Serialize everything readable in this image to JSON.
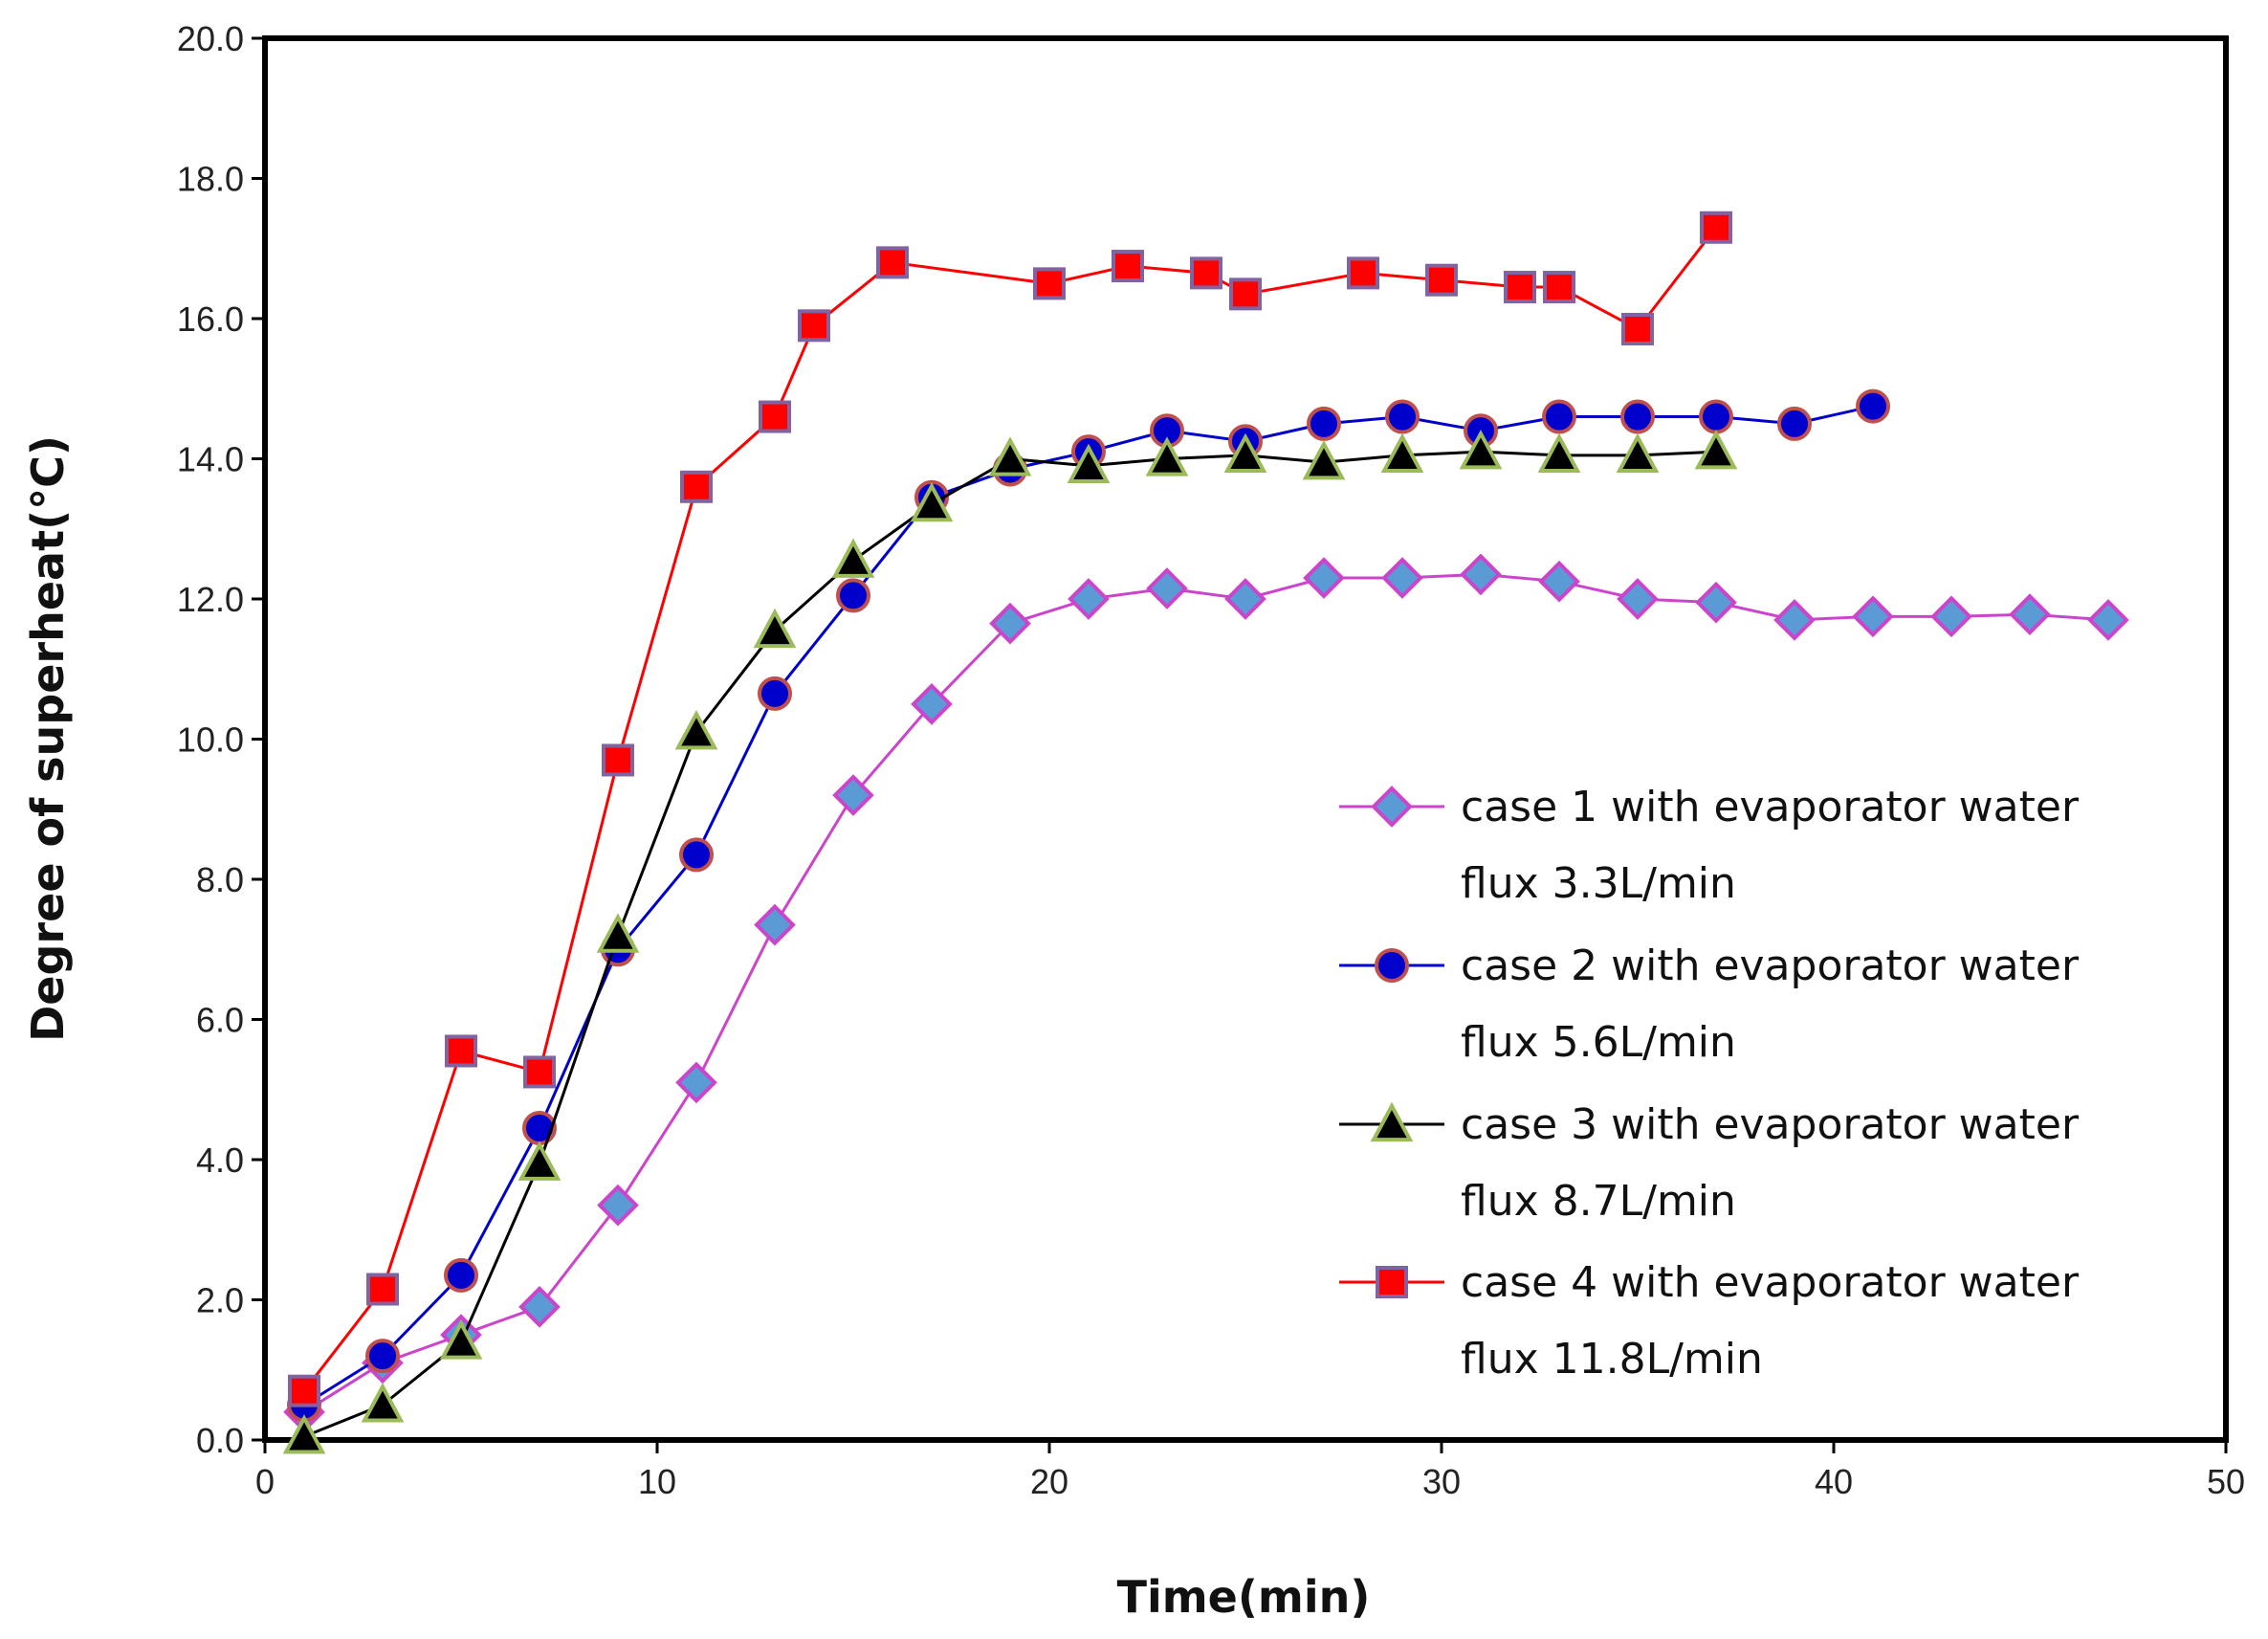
{
  "chart_data": {
    "type": "line",
    "title": "",
    "xlabel": "Time(min)",
    "ylabel": "Degree of superheat(°C)",
    "xlim": [
      0,
      50
    ],
    "ylim": [
      0,
      20
    ],
    "xticks": [
      0,
      10,
      20,
      30,
      40,
      50
    ],
    "xtick_labels": [
      "0",
      "10",
      "20",
      "30",
      "40",
      "50"
    ],
    "yticks": [
      0,
      2,
      4,
      6,
      8,
      10,
      12,
      14,
      16,
      18,
      20
    ],
    "ytick_labels": [
      "0.0",
      "2.0",
      "4.0",
      "6.0",
      "8.0",
      "10.0",
      "12.0",
      "14.0",
      "16.0",
      "18.0",
      "20.0"
    ],
    "grid": false,
    "legend_position": "right",
    "series": [
      {
        "name": "case 1 with evaporator water flux 3.3L/min",
        "legend_lines": [
          "case 1 with evaporator water",
          "flux 3.3L/min"
        ],
        "marker": "diamond",
        "line_color": "#cc44cc",
        "marker_fill": "#5b9bd5",
        "marker_stroke": "#cc44cc",
        "x": [
          1,
          3,
          5,
          7,
          9,
          11,
          13,
          15,
          17,
          19,
          21,
          23,
          25,
          27,
          29,
          31,
          33,
          35,
          37,
          39,
          41,
          43,
          45,
          47
        ],
        "y": [
          0.4,
          1.1,
          1.5,
          1.9,
          3.35,
          5.1,
          7.35,
          9.2,
          10.5,
          11.65,
          12.0,
          12.15,
          12.0,
          12.3,
          12.3,
          12.35,
          12.25,
          12.0,
          11.95,
          11.7,
          11.75,
          11.75,
          11.78,
          11.7
        ]
      },
      {
        "name": "case 2 with evaporator water flux 5.6L/min",
        "legend_lines": [
          "case 2 with evaporator water",
          "flux 5.6L/min"
        ],
        "marker": "circle",
        "line_color": "#0000cc",
        "marker_fill": "#0000cc",
        "marker_stroke": "#c0504d",
        "x": [
          1,
          3,
          5,
          7,
          9,
          11,
          13,
          15,
          17,
          19,
          21,
          23,
          25,
          27,
          29,
          31,
          33,
          35,
          37,
          39,
          41
        ],
        "y": [
          0.5,
          1.2,
          2.35,
          4.45,
          7.0,
          8.35,
          10.65,
          12.05,
          13.45,
          13.85,
          14.1,
          14.4,
          14.25,
          14.5,
          14.6,
          14.4,
          14.6,
          14.6,
          14.6,
          14.5,
          14.75
        ]
      },
      {
        "name": "case 3 with evaporator water flux 8.7L/min",
        "legend_lines": [
          "case 3 with evaporator water",
          "flux 8.7L/min"
        ],
        "marker": "triangle",
        "line_color": "#000000",
        "marker_fill": "#000000",
        "marker_stroke": "#9bbb59",
        "x": [
          1,
          3,
          5,
          7,
          9,
          11,
          13,
          15,
          17,
          19,
          21,
          23,
          25,
          27,
          29,
          31,
          33,
          35,
          37
        ],
        "y": [
          0.05,
          0.5,
          1.4,
          3.95,
          7.2,
          10.1,
          11.55,
          12.55,
          13.35,
          14.0,
          13.9,
          14.0,
          14.05,
          13.95,
          14.05,
          14.1,
          14.05,
          14.05,
          14.1
        ]
      },
      {
        "name": "case 4 with evaporator water flux 11.8L/min",
        "legend_lines": [
          "case 4 with evaporator water",
          "flux 11.8L/min"
        ],
        "marker": "square",
        "line_color": "#ff0000",
        "marker_fill": "#ff0000",
        "marker_stroke": "#8064a2",
        "x": [
          1,
          3,
          5,
          7,
          9,
          11,
          13,
          14,
          16,
          20,
          22,
          24,
          25,
          28,
          30,
          32,
          33,
          35,
          37
        ],
        "y": [
          0.7,
          2.15,
          5.55,
          5.25,
          9.7,
          13.6,
          14.6,
          15.9,
          16.8,
          16.5,
          16.75,
          16.65,
          16.35,
          16.65,
          16.55,
          16.45,
          16.45,
          15.85,
          17.3
        ]
      }
    ]
  }
}
